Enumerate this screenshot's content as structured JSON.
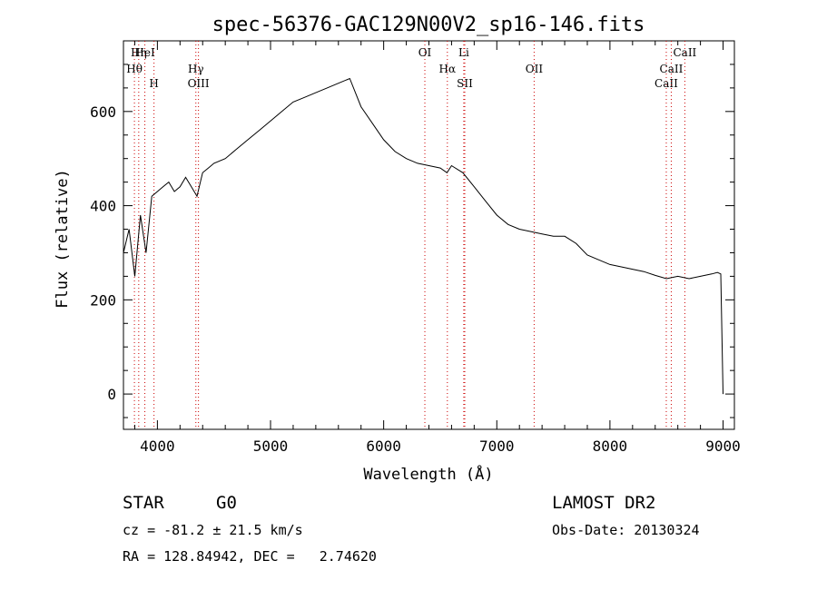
{
  "chart_data": {
    "type": "line",
    "title": "spec-56376-GAC129N00V2_sp16-146.fits",
    "xlabel": "Wavelength (Å)",
    "ylabel": "Flux (relative)",
    "xlim": [
      3700,
      9100
    ],
    "ylim": [
      -75,
      750
    ],
    "xticks": [
      4000,
      5000,
      6000,
      7000,
      8000,
      9000
    ],
    "yticks": [
      0,
      200,
      400,
      600
    ],
    "grid": false,
    "line_color": "#000000",
    "marker_color": "#cc0000",
    "series": [
      {
        "x": [
          3700,
          3750,
          3800,
          3850,
          3900,
          3950,
          4000,
          4050,
          4100,
          4150,
          4200,
          4250,
          4300,
          4350,
          4400,
          4450,
          4500,
          4600,
          4700,
          4800,
          4900,
          5000,
          5100,
          5200,
          5300,
          5400,
          5500,
          5600,
          5700,
          5800,
          5900,
          6000,
          6100,
          6200,
          6300,
          6400,
          6500,
          6560,
          6600,
          6700,
          6800,
          6900,
          7000,
          7100,
          7200,
          7300,
          7400,
          7500,
          7600,
          7700,
          7800,
          7900,
          8000,
          8100,
          8200,
          8300,
          8400,
          8500,
          8600,
          8700,
          8800,
          8900,
          8950,
          8980,
          9000
        ],
        "y": [
          300,
          350,
          250,
          380,
          300,
          420,
          430,
          440,
          450,
          430,
          440,
          460,
          440,
          420,
          470,
          480,
          490,
          500,
          520,
          540,
          560,
          580,
          600,
          620,
          630,
          640,
          650,
          660,
          670,
          610,
          575,
          540,
          515,
          500,
          490,
          485,
          480,
          470,
          485,
          470,
          440,
          410,
          380,
          360,
          350,
          345,
          340,
          335,
          335,
          320,
          295,
          285,
          275,
          270,
          265,
          260,
          252,
          245,
          250,
          245,
          250,
          255,
          258,
          255,
          0
        ]
      }
    ],
    "lines": [
      {
        "label": "Hη",
        "x": 3835
      },
      {
        "label": "Hθ",
        "x": 3797
      },
      {
        "label": "H",
        "x": 3970
      },
      {
        "label": "HeI",
        "x": 3889
      },
      {
        "label": "Hγ",
        "x": 4340
      },
      {
        "label": "OIII",
        "x": 4363
      },
      {
        "label": "OI",
        "x": 6364
      },
      {
        "label": "Hα",
        "x": 6563
      },
      {
        "label": "SII",
        "x": 6717
      },
      {
        "label": "Li",
        "x": 6708
      },
      {
        "label": "OII",
        "x": 7330
      },
      {
        "label": "CaII",
        "x": 8498
      },
      {
        "label": "CaII",
        "x": 8662
      },
      {
        "label": "CaII",
        "x": 8542
      }
    ]
  },
  "info": {
    "object_class": "STAR",
    "subclass": "G0",
    "survey": "LAMOST DR2",
    "cz": "cz = -81.2 ± 21.5 km/s",
    "obs_date": "Obs-Date: 20130324",
    "coords": "RA = 128.84942, DEC =   2.74620"
  }
}
